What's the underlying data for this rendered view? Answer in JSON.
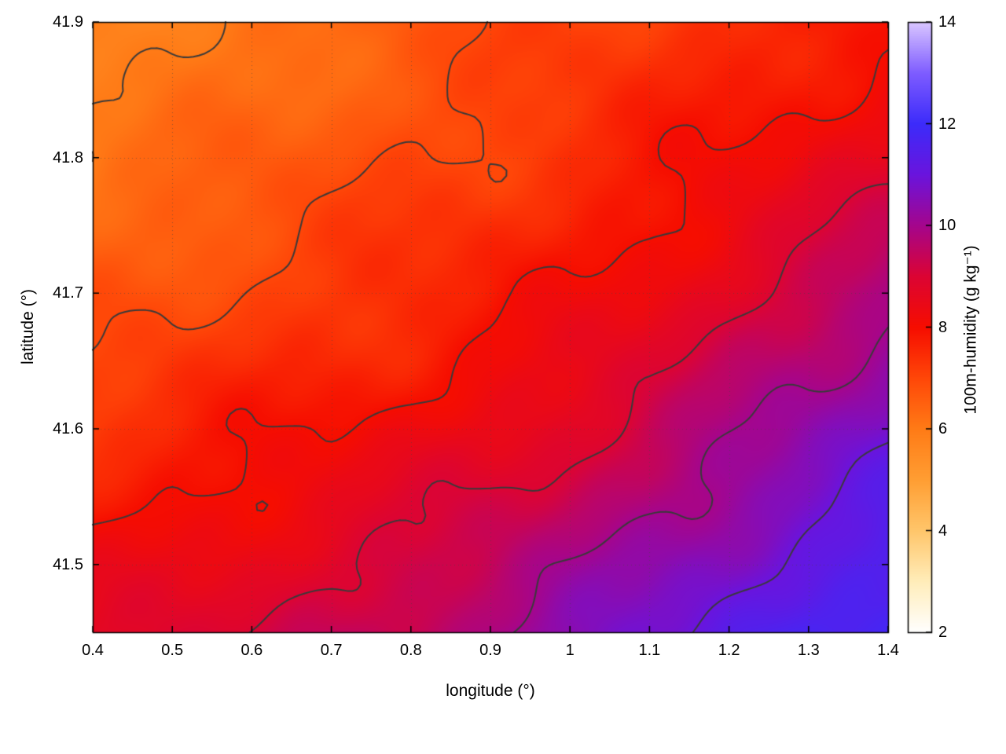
{
  "figure": {
    "background": "#ffffff",
    "frame_color": "#000000"
  },
  "chart_data": {
    "type": "heatmap",
    "subtype": "filled-contour-map-with-contour-lines",
    "title": "",
    "xlabel": "longitude (°)",
    "ylabel": "latitude (°)",
    "colorbar_label": "100m-humidity (g kg⁻¹)",
    "x_range": [
      0.4,
      1.4
    ],
    "y_range": [
      41.45,
      41.9
    ],
    "z_range": [
      2,
      14
    ],
    "x_ticks": [
      0.4,
      0.5,
      0.6,
      0.7,
      0.8,
      0.9,
      1.0,
      1.1,
      1.2,
      1.3,
      1.4
    ],
    "x_tick_labels": [
      "0.4",
      "0.5",
      "0.6",
      "0.7",
      "0.8",
      "0.9",
      "1",
      "1.1",
      "1.2",
      "1.3",
      "1.4"
    ],
    "y_ticks": [
      41.5,
      41.6,
      41.7,
      41.8,
      41.9
    ],
    "y_tick_labels": [
      "41.5",
      "41.6",
      "41.7",
      "41.8",
      "41.9"
    ],
    "colorbar_ticks": [
      2,
      4,
      6,
      8,
      10,
      12,
      14
    ],
    "colorbar_tick_labels": [
      "2",
      "4",
      "6",
      "8",
      "10",
      "12",
      "14"
    ],
    "contour_levels": [
      6,
      7,
      8,
      9,
      10,
      11
    ],
    "contour_color": "#3a3a3a",
    "grid_on": true,
    "legend_position": "right-colorbar",
    "grid": {
      "lon": [
        0.4,
        0.5,
        0.6,
        0.7,
        0.8,
        0.9,
        1.0,
        1.1,
        1.2,
        1.3,
        1.4
      ],
      "lat": [
        41.9,
        41.85,
        41.8,
        41.75,
        41.7,
        41.65,
        41.6,
        41.55,
        41.5,
        41.45
      ],
      "humidity_g_per_kg": [
        [
          5.8,
          6.0,
          6.2,
          6.4,
          6.6,
          6.9,
          7.1,
          7.3,
          7.5,
          7.7,
          7.9
        ],
        [
          5.9,
          6.1,
          6.3,
          6.5,
          6.8,
          7.0,
          7.2,
          7.5,
          7.7,
          8.0,
          8.2
        ],
        [
          6.1,
          6.3,
          6.5,
          6.8,
          7.0,
          7.2,
          7.5,
          7.7,
          8.0,
          8.3,
          8.6
        ],
        [
          6.4,
          6.6,
          6.8,
          7.0,
          7.2,
          7.5,
          7.7,
          8.0,
          8.4,
          8.8,
          9.2
        ],
        [
          6.7,
          6.9,
          7.1,
          7.3,
          7.5,
          7.7,
          8.0,
          8.4,
          8.8,
          9.3,
          10.0
        ],
        [
          7.0,
          7.2,
          7.4,
          7.6,
          7.8,
          8.1,
          8.4,
          8.8,
          9.3,
          9.8,
          10.4
        ],
        [
          7.4,
          7.6,
          7.8,
          8.0,
          8.2,
          8.5,
          8.9,
          9.3,
          9.8,
          10.3,
          10.8
        ],
        [
          7.8,
          8.0,
          8.2,
          8.4,
          8.7,
          9.0,
          9.4,
          9.8,
          10.3,
          10.8,
          11.2
        ],
        [
          8.2,
          8.4,
          8.6,
          8.9,
          9.2,
          9.5,
          9.9,
          10.3,
          10.8,
          11.2,
          11.6
        ],
        [
          8.6,
          8.8,
          9.0,
          9.3,
          9.6,
          10.0,
          10.4,
          10.8,
          11.2,
          11.6,
          11.9
        ]
      ]
    },
    "palette": [
      {
        "value": 2,
        "color": "#ffffff"
      },
      {
        "value": 3,
        "color": "#ffedba"
      },
      {
        "value": 4,
        "color": "#ffc66b"
      },
      {
        "value": 5,
        "color": "#ff9e33"
      },
      {
        "value": 6,
        "color": "#ff7b16"
      },
      {
        "value": 7,
        "color": "#ff4708"
      },
      {
        "value": 8,
        "color": "#f60d00"
      },
      {
        "value": 9,
        "color": "#dc0433"
      },
      {
        "value": 10,
        "color": "#a5058c"
      },
      {
        "value": 11,
        "color": "#6a14dd"
      },
      {
        "value": 12,
        "color": "#3c2bfa"
      },
      {
        "value": 13,
        "color": "#7e5cff"
      },
      {
        "value": 14,
        "color": "#d9c6ff"
      }
    ]
  }
}
